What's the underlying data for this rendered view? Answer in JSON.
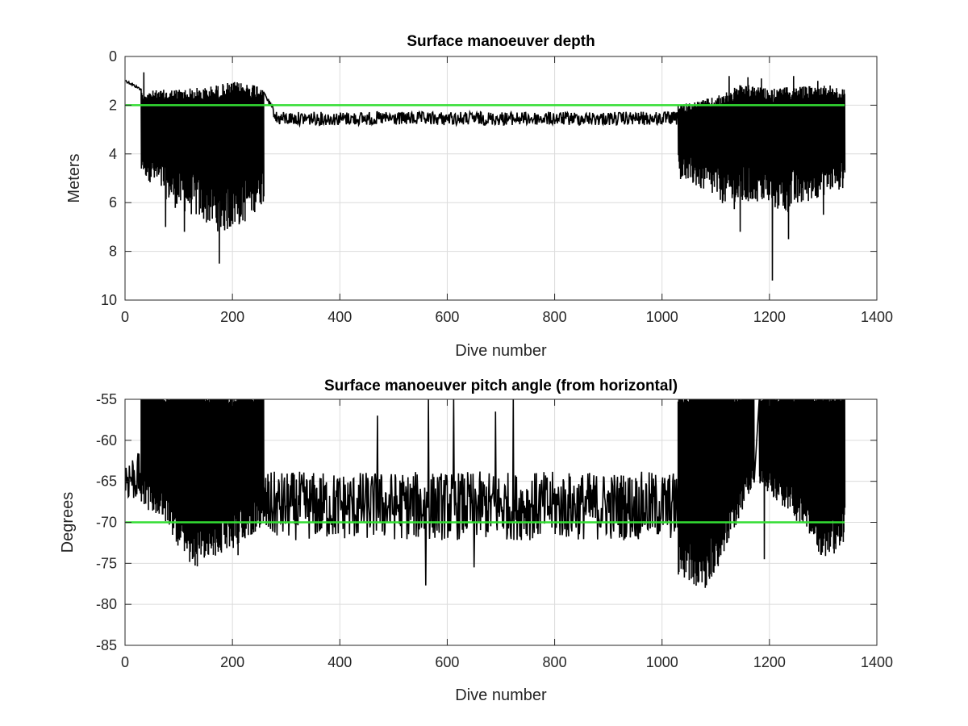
{
  "chart_data": [
    {
      "type": "line",
      "title": "Surface manoeuver depth",
      "xlabel": "Dive number",
      "ylabel": "Meters",
      "xlim": [
        0,
        1400
      ],
      "ylim": [
        0,
        10
      ],
      "y_reversed": true,
      "xticks": [
        "0",
        "200",
        "400",
        "600",
        "800",
        "1000",
        "1200",
        "1400"
      ],
      "yticks": [
        "0",
        "2",
        "4",
        "6",
        "8",
        "10"
      ],
      "grid": true,
      "series": [
        {
          "color": "#000000",
          "regions": [
            {
              "type": "line",
              "x_start": 1,
              "x_end": 30,
              "y_start": 1.0,
              "y_end": 1.35,
              "noise": 0.05
            },
            {
              "type": "band",
              "x_start": 30,
              "x_end": 258,
              "top": [
                [
                  30,
                  1.55
                ],
                [
                  150,
                  1.45
                ],
                [
                  200,
                  1.25
                ],
                [
                  258,
                  1.3
                ]
              ],
              "bottom": [
                [
                  30,
                  4.8
                ],
                [
                  60,
                  5.5
                ],
                [
                  90,
                  6.2
                ],
                [
                  130,
                  6.6
                ],
                [
                  180,
                  7.3
                ],
                [
                  220,
                  6.9
                ],
                [
                  258,
                  6.0
                ]
              ],
              "spikes": [
                [
                  175,
                  8.5
                ],
                [
                  75,
                  7.0
                ],
                [
                  110,
                  7.2
                ],
                [
                  265,
                  6.7
                ]
              ],
              "top_spikes": [
                [
                  35,
                  0.65
                ]
              ]
            },
            {
              "type": "line",
              "x_start": 258,
              "x_end": 1030,
              "y_start": 1.45,
              "y_end": 2.5,
              "mean": 2.55,
              "noise": 0.28
            },
            {
              "type": "band",
              "x_start": 1030,
              "x_end": 1340,
              "top": [
                [
                  1030,
                  2.1
                ],
                [
                  1100,
                  1.8
                ],
                [
                  1150,
                  1.3
                ],
                [
                  1200,
                  1.5
                ],
                [
                  1260,
                  1.4
                ],
                [
                  1310,
                  1.3
                ],
                [
                  1340,
                  1.5
                ]
              ],
              "bottom": [
                [
                  1030,
                  5.0
                ],
                [
                  1080,
                  5.6
                ],
                [
                  1130,
                  6.3
                ],
                [
                  1180,
                  6.0
                ],
                [
                  1230,
                  6.5
                ],
                [
                  1290,
                  5.8
                ],
                [
                  1340,
                  5.4
                ]
              ],
              "spikes": [
                [
                  1205,
                  9.2
                ],
                [
                  1145,
                  7.2
                ],
                [
                  1235,
                  7.5
                ],
                [
                  1300,
                  6.5
                ]
              ],
              "top_spikes": [
                [
                  1125,
                  0.8
                ],
                [
                  1160,
                  0.85
                ],
                [
                  1185,
                  0.9
                ],
                [
                  1245,
                  0.8
                ],
                [
                  1290,
                  1.0
                ]
              ]
            }
          ]
        }
      ],
      "reference_line": {
        "y": 2,
        "x": [
          1,
          1340
        ],
        "color": "#33dd33"
      }
    },
    {
      "type": "line",
      "title": "Surface manoeuver pitch angle (from horizontal)",
      "xlabel": "Dive number",
      "ylabel": "Degrees",
      "xlim": [
        0,
        1400
      ],
      "ylim": [
        -85,
        -55
      ],
      "xticks": [
        "0",
        "200",
        "400",
        "600",
        "800",
        "1000",
        "1200",
        "1400"
      ],
      "yticks": [
        "-55",
        "-60",
        "-65",
        "-70",
        "-75",
        "-80",
        "-85"
      ],
      "grid": true,
      "series": [
        {
          "color": "#000000",
          "regions": [
            {
              "type": "line",
              "x_start": 1,
              "x_end": 30,
              "mean": -64.5,
              "noise": 3.0
            },
            {
              "type": "band",
              "x_start": 30,
              "x_end": 258,
              "top": [
                [
                  30,
                  -55
                ],
                [
                  258,
                  -55
                ]
              ],
              "bottom": [
                [
                  30,
                  -64.5
                ],
                [
                  80,
                  -66.5
                ],
                [
                  120,
                  -70.5
                ],
                [
                  160,
                  -69.5
                ],
                [
                  200,
                  -68.5
                ],
                [
                  258,
                  -66.5
                ]
              ],
              "spikes": [
                [
                  110,
                  -73.5
                ],
                [
                  165,
                  -72.5
                ],
                [
                  210,
                  -74.0
                ]
              ]
            },
            {
              "type": "line",
              "x_start": 258,
              "x_end": 1030,
              "mean": -68.0,
              "noise": 4.2,
              "spikes": [
                [
                  560,
                  -77.7
                ],
                [
                  565,
                  -55.0
                ],
                [
                  612,
                  -55.0
                ],
                [
                  723,
                  -55.0
                ],
                [
                  470,
                  -57.0
                ],
                [
                  690,
                  -56.5
                ],
                [
                  650,
                  -75.5
                ]
              ]
            },
            {
              "type": "band",
              "x_start": 1030,
              "x_end": 1340,
              "top": [
                [
                  1030,
                  -55
                ],
                [
                  1340,
                  -55
                ]
              ],
              "bottom": [
                [
                  1030,
                  -71.0
                ],
                [
                  1080,
                  -72.5
                ],
                [
                  1120,
                  -68.5
                ],
                [
                  1170,
                  -62.5
                ],
                [
                  1200,
                  -63.5
                ],
                [
                  1260,
                  -66.5
                ],
                [
                  1300,
                  -69.5
                ],
                [
                  1340,
                  -68.0
                ]
              ],
              "spikes": [
                [
                  1060,
                  -74.8
                ],
                [
                  1190,
                  -74.5
                ],
                [
                  1320,
                  -73.8
                ]
              ],
              "gaps": [
                [
                  1172,
                  1180
                ]
              ]
            }
          ]
        }
      ],
      "reference_line": {
        "y": -70,
        "x": [
          1,
          1340
        ],
        "color": "#33dd33"
      }
    }
  ]
}
